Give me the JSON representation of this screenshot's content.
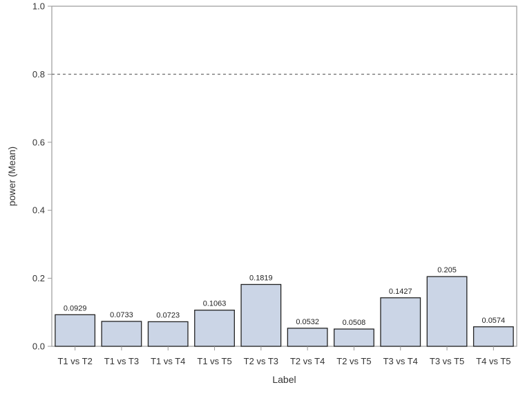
{
  "chart_data": {
    "type": "bar",
    "title": "",
    "xlabel": "Label",
    "ylabel": "power (Mean)",
    "ylim": [
      0,
      1.0
    ],
    "yticks": [
      0.0,
      0.2,
      0.4,
      0.6,
      0.8,
      1.0
    ],
    "ytick_labels": [
      "0.0",
      "0.2",
      "0.4",
      "0.6",
      "0.8",
      "1.0"
    ],
    "reference_line": {
      "y": 0.8,
      "style": "dashed"
    },
    "grid": false,
    "categories": [
      "T1 vs T2",
      "T1 vs T3",
      "T1 vs T4",
      "T1 vs T5",
      "T2 vs T3",
      "T2 vs T4",
      "T2 vs T5",
      "T3 vs T4",
      "T3 vs T5",
      "T4 vs T5"
    ],
    "values": [
      0.0929,
      0.0733,
      0.0723,
      0.1063,
      0.1819,
      0.0532,
      0.0508,
      0.1427,
      0.205,
      0.0574
    ],
    "value_labels": [
      "0.0929",
      "0.0733",
      "0.0723",
      "0.1063",
      "0.1819",
      "0.0532",
      "0.0508",
      "0.1427",
      "0.205",
      "0.0574"
    ],
    "colors": {
      "bar_fill": "#cbd5e6",
      "bar_stroke": "#222222",
      "frame": "#999999",
      "reference_line": "#777777"
    }
  }
}
